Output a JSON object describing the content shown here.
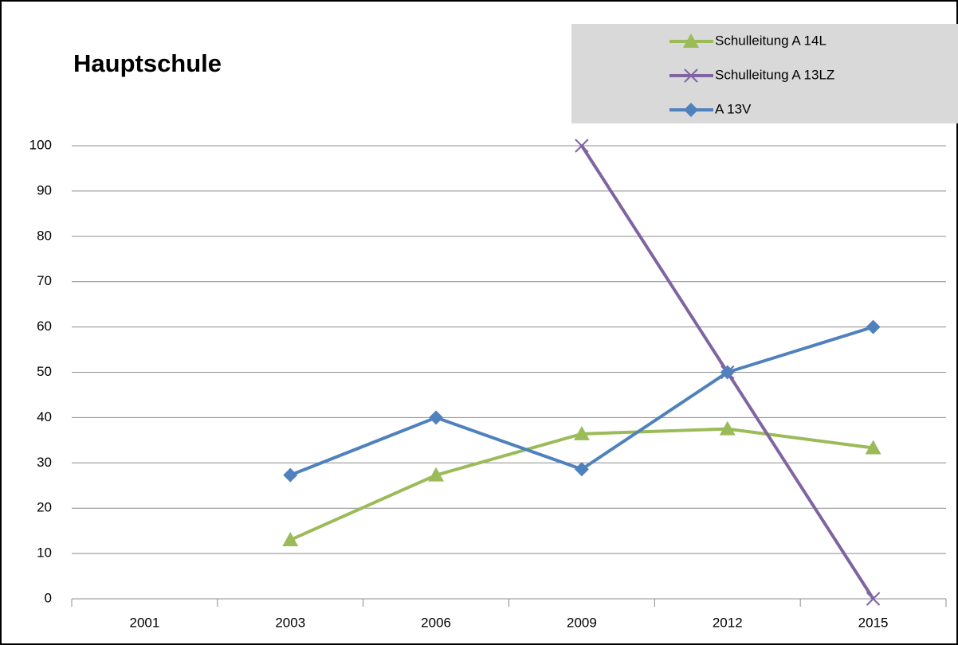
{
  "chart_data": {
    "type": "line",
    "title": "Hauptschule",
    "categories": [
      "2001",
      "2003",
      "2006",
      "2009",
      "2012",
      "2015"
    ],
    "series": [
      {
        "name": "Schulleitung A 14L",
        "color": "#9bbb59",
        "marker": "triangle",
        "values": [
          null,
          13,
          27.3,
          36.4,
          37.5,
          33.3
        ]
      },
      {
        "name": "Schulleitung A 13LZ",
        "color": "#8064a2",
        "marker": "x",
        "values": [
          null,
          null,
          null,
          100,
          50,
          0
        ]
      },
      {
        "name": "A 13V",
        "color": "#4f81bd",
        "marker": "diamond",
        "values": [
          null,
          27.3,
          40,
          28.6,
          50,
          60
        ]
      }
    ],
    "ylim": [
      0,
      100
    ],
    "yticks": [
      0,
      10,
      20,
      30,
      40,
      50,
      60,
      70,
      80,
      90,
      100
    ],
    "grid": true,
    "legend": "top-right"
  }
}
